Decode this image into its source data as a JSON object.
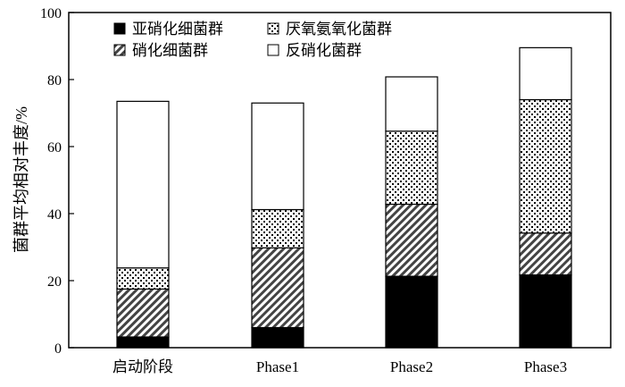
{
  "chart_data": {
    "type": "bar",
    "stacked": true,
    "title": "",
    "xlabel": "",
    "ylabel": "菌群平均相对丰度/%",
    "ylim": [
      0,
      100
    ],
    "yticks": [
      0,
      20,
      40,
      60,
      80,
      100
    ],
    "grid": false,
    "legend_position": "top-left, two columns inside plot",
    "categories": [
      "启动阶段",
      "Phase1",
      "Phase2",
      "Phase3"
    ],
    "series": [
      {
        "name": "亚硝化细菌群",
        "pattern": "solid-black",
        "values": [
          3.2,
          6.0,
          21.3,
          21.7
        ]
      },
      {
        "name": "硝化细菌群",
        "pattern": "diagonal-hatch",
        "values": [
          14.3,
          23.8,
          21.5,
          12.5
        ]
      },
      {
        "name": "厌氧氨氧化菌群",
        "pattern": "dots",
        "values": [
          6.3,
          11.4,
          21.8,
          39.8
        ]
      },
      {
        "name": "反硝化菌群",
        "pattern": "white",
        "values": [
          49.7,
          31.8,
          16.2,
          15.5
        ]
      }
    ],
    "legend_order": [
      "亚硝化细菌群",
      "厌氧氨氧化菌群",
      "硝化细菌群",
      "反硝化菌群"
    ]
  },
  "colors": {
    "solid": "#000000",
    "outline": "#000000",
    "background": "#ffffff"
  }
}
